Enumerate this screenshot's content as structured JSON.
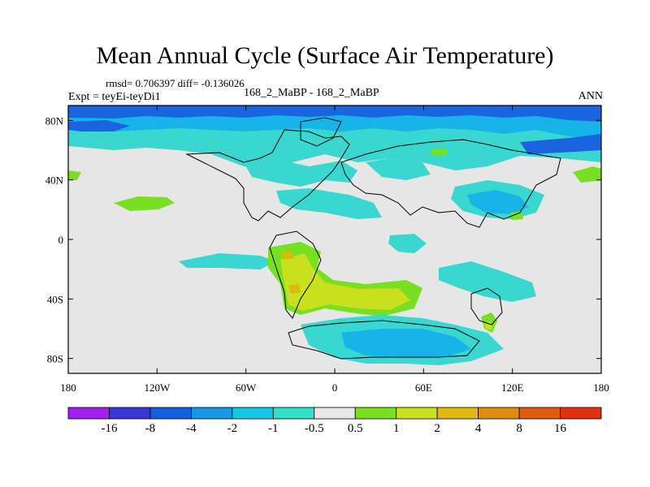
{
  "title": "Mean Annual Cycle (Surface Air Temperature)",
  "stats": "rmsd= 0.706397 diff= -0.136026",
  "expt": "Expt = teyEi-teyDi1",
  "center_label": "168_2_MaBP - 168_2_MaBP",
  "season": "ANN",
  "lat_labels": [
    "80N",
    "40N",
    "0",
    "40S",
    "80S"
  ],
  "lat_values": [
    80,
    40,
    0,
    -40,
    -80
  ],
  "lon_labels": [
    "180",
    "120W",
    "60W",
    "0",
    "60E",
    "120E",
    "180"
  ],
  "lon_values": [
    -180,
    -120,
    -60,
    0,
    60,
    120,
    180
  ],
  "colorbar": {
    "colors": [
      "#a020f0",
      "#3a36d8",
      "#1060e0",
      "#1a96e8",
      "#13c8e6",
      "#30e0c8",
      "#e8e8e8",
      "#78e020",
      "#c8e01e",
      "#e0b810",
      "#e08c10",
      "#e05a10",
      "#e03010"
    ],
    "labels": [
      "-16",
      "-8",
      "-4",
      "-2",
      "-1",
      "-0.5",
      "0.5",
      "1",
      "2",
      "4",
      "8",
      "16"
    ]
  }
}
